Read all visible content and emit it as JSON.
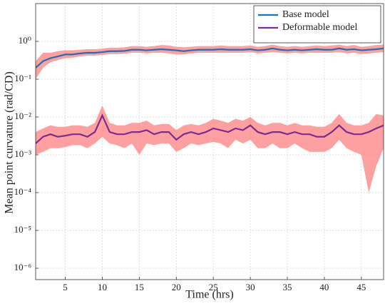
{
  "chart_data": {
    "type": "line",
    "xlabel": "Time (hrs)",
    "ylabel": "Mean point curvature (rad/CD)",
    "x": [
      1,
      2,
      3,
      4,
      5,
      6,
      7,
      8,
      9,
      10,
      11,
      12,
      13,
      14,
      15,
      16,
      17,
      18,
      19,
      20,
      21,
      22,
      23,
      24,
      25,
      26,
      27,
      28,
      29,
      30,
      31,
      32,
      33,
      34,
      35,
      36,
      37,
      38,
      39,
      40,
      41,
      42,
      43,
      44,
      45,
      46,
      47,
      48
    ],
    "xlim": [
      1,
      48
    ],
    "xticks": [
      5,
      10,
      15,
      20,
      25,
      30,
      35,
      40,
      45
    ],
    "ylog": true,
    "ylim": [
      5e-07,
      10
    ],
    "yticks": [
      {
        "value": 1e-06,
        "label": "10⁻⁶"
      },
      {
        "value": 1e-05,
        "label": "10⁻⁵"
      },
      {
        "value": 0.0001,
        "label": "10⁻⁴"
      },
      {
        "value": 0.001,
        "label": "10⁻³"
      },
      {
        "value": 0.01,
        "label": "10⁻²"
      },
      {
        "value": 0.1,
        "label": "10⁻¹"
      },
      {
        "value": 1,
        "label": "10⁰"
      }
    ],
    "grid": true,
    "legend": "upper right",
    "band_color": "#ff8080",
    "series": [
      {
        "name": "Base model",
        "color": "#1f6fb5",
        "values": [
          0.2,
          0.3,
          0.36,
          0.4,
          0.45,
          0.45,
          0.48,
          0.5,
          0.5,
          0.52,
          0.55,
          0.55,
          0.56,
          0.6,
          0.6,
          0.58,
          0.6,
          0.62,
          0.6,
          0.58,
          0.55,
          0.58,
          0.6,
          0.6,
          0.6,
          0.62,
          0.6,
          0.6,
          0.6,
          0.62,
          0.58,
          0.6,
          0.65,
          0.6,
          0.58,
          0.6,
          0.58,
          0.6,
          0.62,
          0.6,
          0.6,
          0.65,
          0.6,
          0.62,
          0.58,
          0.6,
          0.62,
          0.65
        ],
        "lower": [
          0.1,
          0.2,
          0.28,
          0.32,
          0.36,
          0.37,
          0.4,
          0.42,
          0.42,
          0.44,
          0.46,
          0.46,
          0.47,
          0.5,
          0.5,
          0.48,
          0.5,
          0.5,
          0.48,
          0.45,
          0.45,
          0.48,
          0.5,
          0.5,
          0.5,
          0.5,
          0.5,
          0.5,
          0.5,
          0.52,
          0.48,
          0.5,
          0.52,
          0.5,
          0.48,
          0.5,
          0.48,
          0.5,
          0.5,
          0.5,
          0.5,
          0.52,
          0.48,
          0.5,
          0.46,
          0.48,
          0.5,
          0.52
        ],
        "upper": [
          0.3,
          0.5,
          0.5,
          0.55,
          0.58,
          0.58,
          0.6,
          0.62,
          0.62,
          0.64,
          0.68,
          0.68,
          0.7,
          0.75,
          0.75,
          0.72,
          0.75,
          0.8,
          0.78,
          0.72,
          0.7,
          0.72,
          0.75,
          0.75,
          0.75,
          0.78,
          0.75,
          0.75,
          0.75,
          0.78,
          0.72,
          0.75,
          0.82,
          0.75,
          0.72,
          0.75,
          0.72,
          0.75,
          0.78,
          0.75,
          0.78,
          0.82,
          0.75,
          0.8,
          0.72,
          0.75,
          0.8,
          0.82
        ]
      },
      {
        "name": "Deformable model",
        "color": "#7b2d8e",
        "values": [
          0.002,
          0.003,
          0.0035,
          0.003,
          0.0032,
          0.0035,
          0.0035,
          0.003,
          0.004,
          0.011,
          0.004,
          0.0035,
          0.0035,
          0.004,
          0.004,
          0.0045,
          0.0035,
          0.004,
          0.004,
          0.0025,
          0.0035,
          0.004,
          0.0035,
          0.004,
          0.005,
          0.0045,
          0.004,
          0.005,
          0.0045,
          0.006,
          0.004,
          0.0035,
          0.004,
          0.004,
          0.0035,
          0.004,
          0.0035,
          0.0035,
          0.003,
          0.003,
          0.004,
          0.006,
          0.004,
          0.0035,
          0.0035,
          0.004,
          0.005,
          0.006
        ],
        "lower": [
          0.001,
          0.0012,
          0.0015,
          0.0015,
          0.0016,
          0.0018,
          0.0018,
          0.0015,
          0.002,
          0.003,
          0.002,
          0.0018,
          0.0015,
          0.002,
          0.001,
          0.002,
          0.0018,
          0.002,
          0.002,
          0.0012,
          0.0015,
          0.002,
          0.0018,
          0.002,
          0.0022,
          0.002,
          0.0015,
          0.0025,
          0.002,
          0.0025,
          0.0015,
          0.0015,
          0.002,
          0.0015,
          0.0015,
          0.002,
          0.0015,
          0.0012,
          0.0012,
          0.0012,
          0.0015,
          0.0025,
          0.0015,
          0.0012,
          0.001,
          0.0001,
          0.0005,
          0.0015
        ],
        "upper": [
          0.004,
          0.005,
          0.006,
          0.0055,
          0.0055,
          0.006,
          0.006,
          0.0055,
          0.007,
          0.02,
          0.007,
          0.006,
          0.006,
          0.007,
          0.007,
          0.008,
          0.006,
          0.0065,
          0.0065,
          0.0045,
          0.006,
          0.0065,
          0.006,
          0.007,
          0.009,
          0.008,
          0.007,
          0.009,
          0.008,
          0.01,
          0.007,
          0.006,
          0.007,
          0.007,
          0.006,
          0.007,
          0.006,
          0.006,
          0.0055,
          0.0055,
          0.007,
          0.012,
          0.007,
          0.006,
          0.006,
          0.007,
          0.012,
          0.011
        ]
      }
    ]
  }
}
